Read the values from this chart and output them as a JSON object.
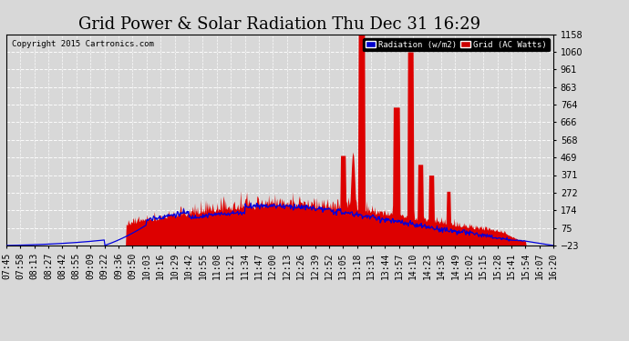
{
  "title": "Grid Power & Solar Radiation Thu Dec 31 16:29",
  "copyright": "Copyright 2015 Cartronics.com",
  "legend_labels": [
    "Radiation (w/m2)",
    "Grid (AC Watts)"
  ],
  "legend_colors_bg": [
    "#0000cc",
    "#cc0000"
  ],
  "radiation_color": "#0000dd",
  "grid_fill_color": "#dd0000",
  "background_color": "#d8d8d8",
  "plot_background": "#d8d8d8",
  "yticks_right": [
    -23.0,
    75.4,
    173.8,
    272.3,
    370.7,
    469.1,
    567.6,
    666.0,
    764.4,
    862.8,
    961.3,
    1059.7,
    1158.1
  ],
  "ymin": -23.0,
  "ymax": 1158.1,
  "title_fontsize": 13,
  "tick_fontsize": 7,
  "x_tick_labels": [
    "07:45",
    "07:58",
    "08:13",
    "08:27",
    "08:42",
    "08:55",
    "09:09",
    "09:22",
    "09:36",
    "09:50",
    "10:03",
    "10:16",
    "10:29",
    "10:42",
    "10:55",
    "11:08",
    "11:21",
    "11:34",
    "11:47",
    "12:00",
    "12:13",
    "12:26",
    "12:39",
    "12:52",
    "13:05",
    "13:18",
    "13:31",
    "13:44",
    "13:57",
    "14:10",
    "14:23",
    "14:36",
    "14:49",
    "15:02",
    "15:15",
    "15:28",
    "15:41",
    "15:54",
    "16:07",
    "16:20"
  ],
  "num_points": 800
}
